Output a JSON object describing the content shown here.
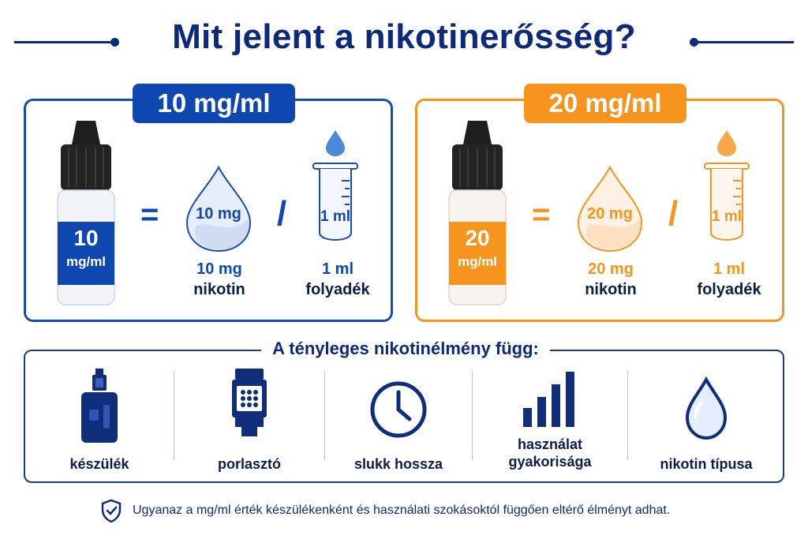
{
  "title": "Mit jelent a nikotinerősség?",
  "panels": [
    {
      "badge": "10 mg/ml",
      "bottle_value": "10",
      "bottle_unit": "mg/ml",
      "equals": "=",
      "drop_text": "10 mg",
      "slash": "/",
      "tube_text": "1 ml",
      "drop_caption_value": "10 mg",
      "drop_caption_label": "nikotin",
      "tube_caption_value": "1 ml",
      "tube_caption_label": "folyadék",
      "accent": "#0f47b0"
    },
    {
      "badge": "20 mg/ml",
      "bottle_value": "20",
      "bottle_unit": "mg/ml",
      "equals": "=",
      "drop_text": "20 mg",
      "slash": "/",
      "tube_text": "1 ml",
      "drop_caption_value": "20 mg",
      "drop_caption_label": "nikotin",
      "tube_caption_value": "1 ml",
      "tube_caption_label": "folyadék",
      "accent": "#f7941d"
    }
  ],
  "factors": {
    "heading": "A tényleges nikotinélmény függ:",
    "items": [
      {
        "label": "készülék",
        "icon": "vape-device-icon"
      },
      {
        "label": "porlasztó",
        "icon": "coil-icon"
      },
      {
        "label": "slukk hossza",
        "icon": "clock-icon"
      },
      {
        "label": "használat gyakorisága",
        "icon": "bar-chart-icon"
      },
      {
        "label": "nikotin típusa",
        "icon": "droplet-icon"
      }
    ]
  },
  "note": "Ugyanaz a mg/ml érték készülékenként és használati szokásoktól függően eltérő élményt adhat.",
  "colors": {
    "navy": "#0d2a7a",
    "blue": "#0f47b0",
    "orange": "#f7941d"
  }
}
